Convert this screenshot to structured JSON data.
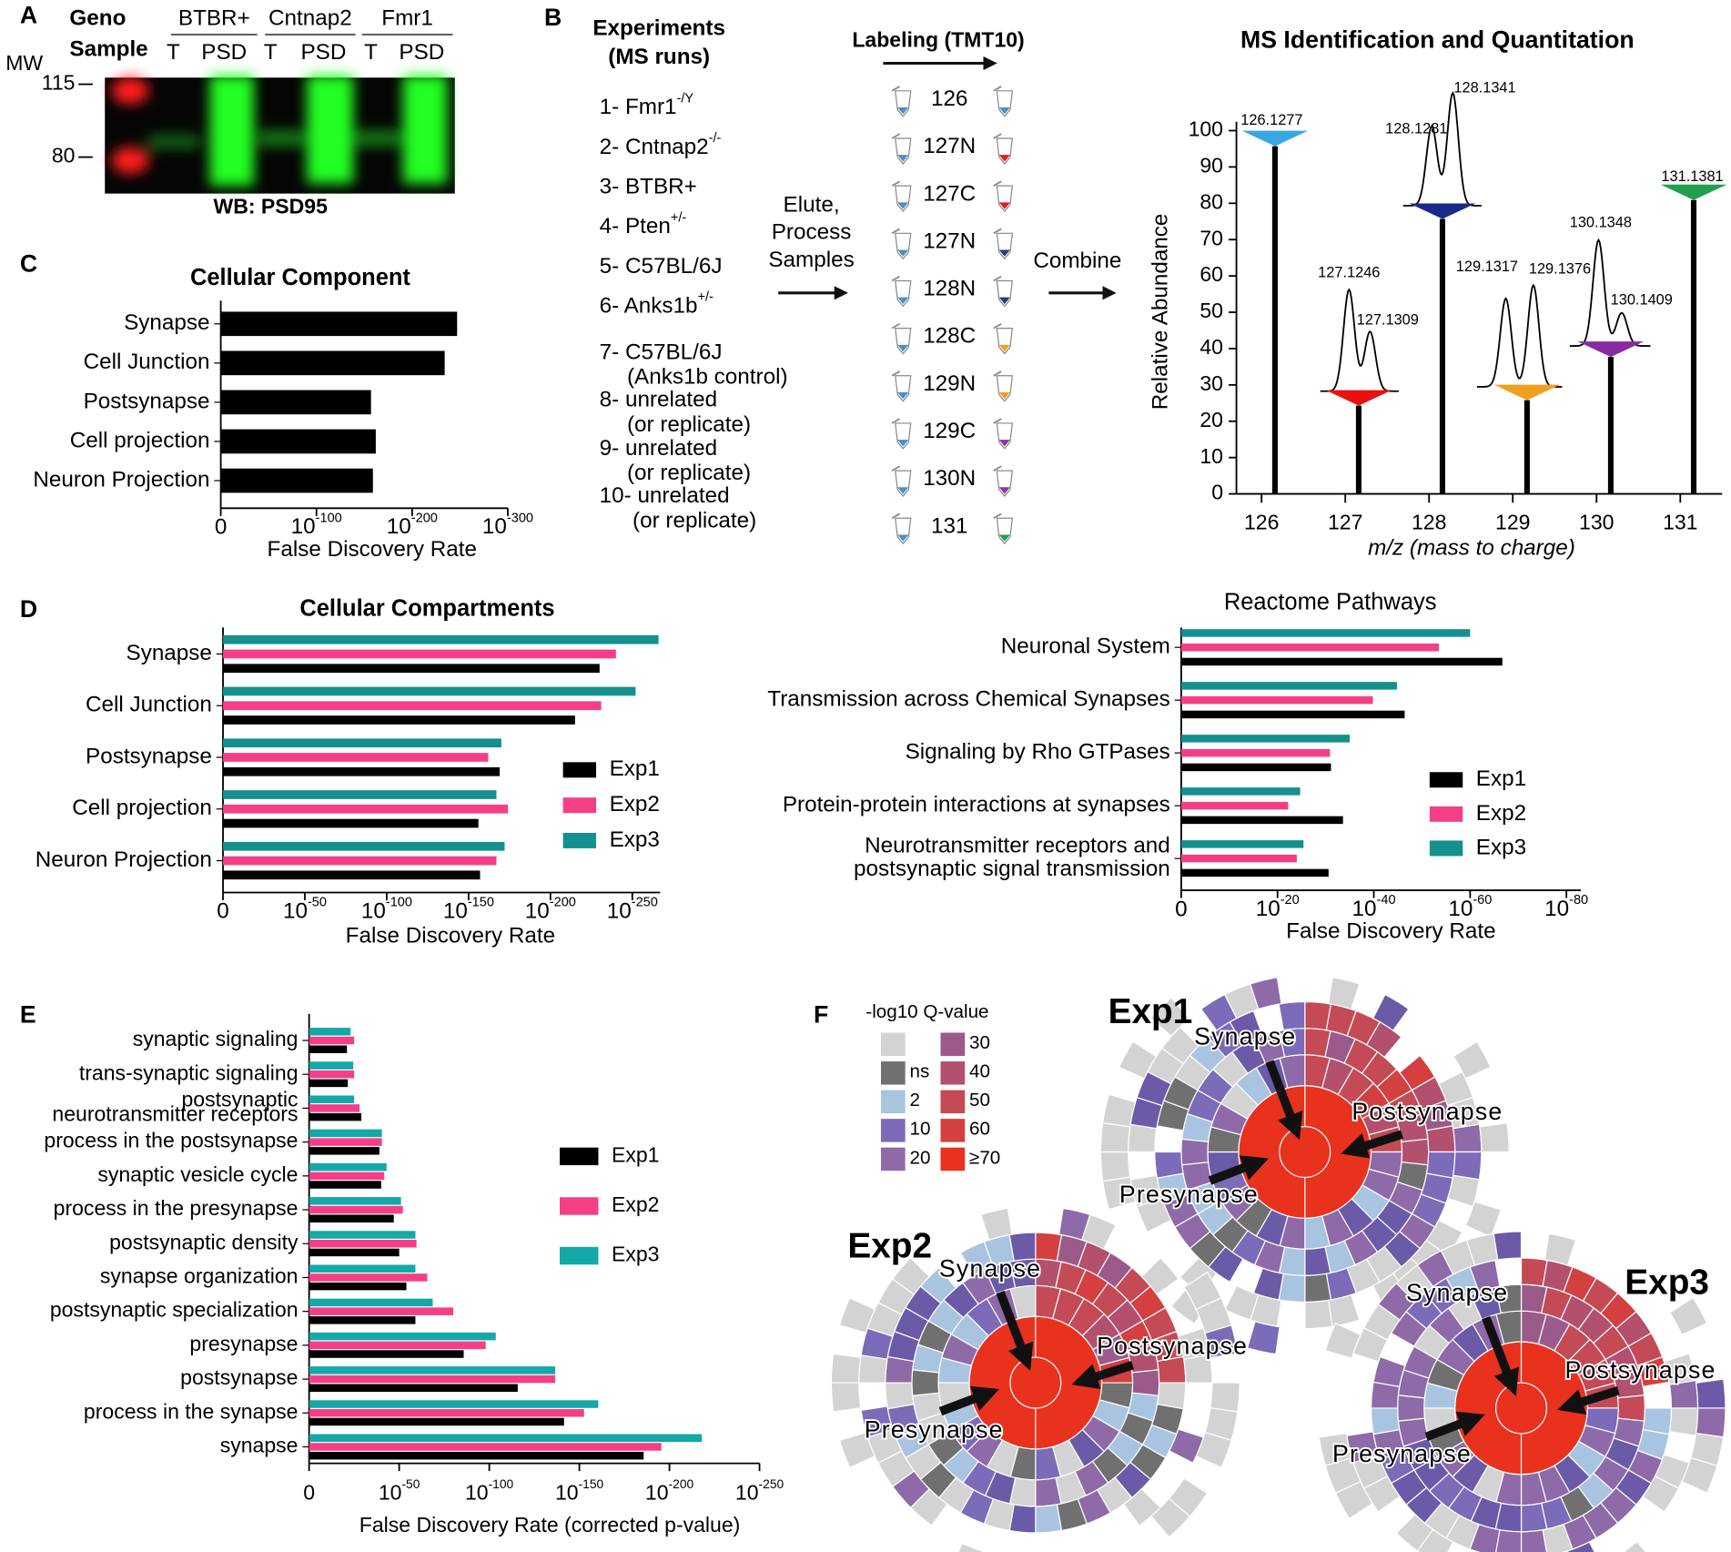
{
  "panels": [
    "A",
    "B",
    "C",
    "D",
    "E",
    "F"
  ],
  "panel_a": {
    "header": [
      "Geno",
      "Sample"
    ],
    "genotypes": [
      "BTBR+",
      "Cntnap2",
      "Fmr1"
    ],
    "samples": [
      "T",
      "PSD",
      "T",
      "PSD",
      "T",
      "PSD"
    ],
    "mw_title": "MW",
    "mw_markers": [
      115,
      80
    ],
    "caption": "WB: PSD95"
  },
  "panel_b": {
    "experiments_title": [
      "Experiments",
      "(MS runs)"
    ],
    "experiments": [
      {
        "text": "1- Fmr1",
        "sup": "-/Y"
      },
      {
        "text": "2- Cntnap2",
        "sup": "-/-"
      },
      {
        "text": "3- BTBR+"
      },
      {
        "text": "4- Pten",
        "sup": "+/-"
      },
      {
        "text": "5- C57BL/6J"
      },
      {
        "text": "6- Anks1b",
        "sup": "+/-"
      },
      {
        "text": "7- C57BL/6J",
        "note": "(Anks1b control)"
      },
      {
        "text": "8- unrelated",
        "note": "(or replicate)"
      },
      {
        "text": "9- unrelated",
        "note": "(or replicate)"
      },
      {
        "text": "10- unrelated",
        "note": "(or replicate)"
      }
    ],
    "step1": [
      "Elute,",
      "Process",
      "Samples"
    ],
    "labeling_title": "Labeling (TMT10)",
    "channels": [
      "126",
      "127N",
      "127C",
      "127N",
      "128N",
      "128C",
      "129N",
      "129C",
      "130N",
      "131"
    ],
    "left_tube_color": "#4a90c8",
    "tube_colors": [
      "#4a90c8",
      "#e02020",
      "#e02020",
      "#2a3a8a",
      "#2a3a8a",
      "#f0a020",
      "#f0a020",
      "#8a3aa0",
      "#8a3aa0",
      "#20a050"
    ],
    "step2": "Combine"
  },
  "chart_data": [
    {
      "type": "hbar",
      "title": "Cellular Component",
      "categories": [
        "Synapse",
        "Cell Junction",
        "Postsynapse",
        "Cell projection",
        "Neuron Projection"
      ],
      "values": [
        247,
        234,
        157,
        162,
        159
      ],
      "color": "#000000",
      "xlim": [
        0,
        300
      ],
      "xticks": [
        0,
        {
          "value": 100,
          "label": "10",
          "sup": "-100"
        },
        {
          "value": 200,
          "label": "10",
          "sup": "-200"
        },
        {
          "value": 300,
          "label": "10",
          "sup": "-300"
        }
      ],
      "xlabel": "False Discovery Rate"
    },
    {
      "type": "hbar",
      "title": "Cellular Compartments",
      "categories": [
        "Synapse",
        "Cell Junction",
        "Postsynapse",
        "Cell projection",
        "Neuron Projection"
      ],
      "series": [
        {
          "name": "Exp1",
          "color": "#000000",
          "values": [
            230,
            215,
            169,
            156,
            157
          ]
        },
        {
          "name": "Exp2",
          "color": "#f43f86",
          "values": [
            240,
            231,
            162,
            174,
            167
          ]
        },
        {
          "name": "Exp3",
          "color": "#14908e",
          "values": [
            266,
            252,
            170,
            167,
            172
          ]
        }
      ],
      "xlim": [
        0,
        267
      ],
      "xticks": [
        0,
        {
          "value": 50,
          "label": "10",
          "sup": "-50"
        },
        {
          "value": 100,
          "label": "10",
          "sup": "-100"
        },
        {
          "value": 150,
          "label": "10",
          "sup": "-150"
        },
        {
          "value": 200,
          "label": "10",
          "sup": "-200"
        },
        {
          "value": 250,
          "label": "10",
          "sup": "-250"
        }
      ],
      "xlabel": "False Discovery Rate",
      "legend": "right"
    },
    {
      "type": "hbar",
      "title": "Reactome Pathways",
      "categories": [
        "Neuronal System",
        "Transmission across Chemical Synapses",
        "Signaling by Rho GTPases",
        "Protein-protein interactions at synapses",
        "Neurotransmitter receptors and\npostsynaptic signal transmission"
      ],
      "series": [
        {
          "name": "Exp1",
          "color": "#000000",
          "values": [
            66.7,
            46.4,
            31.1,
            33.6,
            30.6
          ]
        },
        {
          "name": "Exp2",
          "color": "#f43f86",
          "values": [
            53.5,
            39.8,
            30.9,
            22.2,
            24
          ]
        },
        {
          "name": "Exp3",
          "color": "#14908e",
          "values": [
            60,
            44.8,
            35,
            24.7,
            25.4
          ]
        }
      ],
      "xlim": [
        0,
        83
      ],
      "xticks": [
        0,
        {
          "value": 20,
          "label": "10",
          "sup": "-20"
        },
        {
          "value": 40,
          "label": "10",
          "sup": "-40"
        },
        {
          "value": 60,
          "label": "10",
          "sup": "-60"
        },
        {
          "value": 80,
          "label": "10",
          "sup": "-80"
        }
      ],
      "xlabel": "False Discovery Rate",
      "legend": "right"
    },
    {
      "type": "hbar",
      "categories": [
        "synaptic signaling",
        "trans-synaptic signaling",
        "postsynaptic\nneurotransmitter receptors",
        "process in the postsynapse",
        "synaptic vesicle cycle",
        "process in the presynapse",
        "postsynaptic density",
        "synapse organization",
        "postsynaptic specialization",
        "presynapse",
        "postsynapse",
        "process in the synapse",
        "synapse"
      ],
      "series": [
        {
          "name": "Exp1",
          "color": "#000000",
          "values": [
            21,
            21.5,
            29,
            39,
            40,
            47,
            50,
            54,
            59,
            85.8,
            115.8,
            141.5,
            185.7
          ]
        },
        {
          "name": "Exp2",
          "color": "#f43f86",
          "values": [
            25,
            25,
            28,
            40.4,
            41.7,
            52,
            59.6,
            65.6,
            80,
            98,
            136.6,
            152.6,
            195.5
          ]
        },
        {
          "name": "Exp3",
          "color": "#14a8a8",
          "values": [
            23,
            24.5,
            25,
            40.4,
            43,
            51,
            59,
            59,
            68.6,
            103.6,
            136.6,
            160.5,
            218
          ]
        }
      ],
      "xlim": [
        0,
        250
      ],
      "xticks": [
        0,
        {
          "value": 50,
          "label": "10",
          "sup": "-50"
        },
        {
          "value": 100,
          "label": "10",
          "sup": "-100"
        },
        {
          "value": 150,
          "label": "10",
          "sup": "-150"
        },
        {
          "value": 200,
          "label": "10",
          "sup": "-200"
        },
        {
          "value": 250,
          "label": "10",
          "sup": "-250"
        }
      ],
      "xlabel": "False Discovery Rate (corrected p-value)",
      "legend": "right"
    },
    {
      "type": "stick",
      "title": "MS Identification and Quantitation",
      "x": [
        126.16,
        127.16,
        128.16,
        129.17,
        130.17,
        131.16
      ],
      "values": [
        95.7,
        24.3,
        75.7,
        25.8,
        37.7,
        80.9
      ],
      "colors": [
        "#3aa8e0",
        "#e81010",
        "#1a2a8a",
        "#f0a020",
        "#8a2aa0",
        "#20a050"
      ],
      "annotations": [
        "126.1277",
        "127.1246",
        "127.1309",
        "128.1281",
        "128.1341",
        "129.1317",
        "129.1376",
        "130.1348",
        "130.1409",
        "131.1381"
      ],
      "xlim": [
        125.7,
        131.5
      ],
      "ylim": [
        0,
        100
      ],
      "xticks": [
        126,
        127,
        128,
        129,
        130,
        131
      ],
      "yticks": [
        0,
        10,
        20,
        30,
        40,
        50,
        60,
        70,
        80,
        90,
        100
      ],
      "xlabel": "m/z (mass to charge)",
      "ylabel": "Relative Abundance"
    }
  ],
  "panel_f": {
    "legend_title": "-log10 Q-value",
    "legend": [
      {
        "label": null,
        "color": "#d3d3d3"
      },
      {
        "label": "ns",
        "color": "#707070"
      },
      {
        "label": "2",
        "color": "#a8c4e0"
      },
      {
        "label": "10",
        "color": "#7b6bb8"
      },
      {
        "label": "20",
        "color": "#8e6aa8"
      },
      {
        "label": "30",
        "color": "#9b5a8a"
      },
      {
        "label": "40",
        "color": "#b2506e"
      },
      {
        "label": "50",
        "color": "#c44a55"
      },
      {
        "label": "60",
        "color": "#d43f3f"
      },
      {
        "label": "≥70",
        "color": "#e8321e"
      }
    ],
    "sunbursts": [
      {
        "title": "Exp1",
        "labels": [
          "Synapse",
          "Postsynapse",
          "Presynapse"
        ]
      },
      {
        "title": "Exp2",
        "labels": [
          "Synapse",
          "Postsynapse",
          "Presynapse"
        ]
      },
      {
        "title": "Exp3",
        "labels": [
          "Synapse",
          "Postsynapse",
          "Presynapse"
        ]
      }
    ]
  }
}
